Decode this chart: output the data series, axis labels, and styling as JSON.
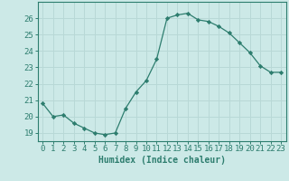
{
  "x": [
    0,
    1,
    2,
    3,
    4,
    5,
    6,
    7,
    8,
    9,
    10,
    11,
    12,
    13,
    14,
    15,
    16,
    17,
    18,
    19,
    20,
    21,
    22,
    23
  ],
  "y": [
    20.8,
    20.0,
    20.1,
    19.6,
    19.3,
    19.0,
    18.9,
    19.0,
    20.5,
    21.5,
    22.2,
    23.5,
    26.0,
    26.2,
    26.3,
    25.9,
    25.8,
    25.5,
    25.1,
    24.5,
    23.9,
    23.1,
    22.7,
    22.7
  ],
  "ylim": [
    18.5,
    27.0
  ],
  "yticks": [
    19,
    20,
    21,
    22,
    23,
    24,
    25,
    26
  ],
  "xticks": [
    0,
    1,
    2,
    3,
    4,
    5,
    6,
    7,
    8,
    9,
    10,
    11,
    12,
    13,
    14,
    15,
    16,
    17,
    18,
    19,
    20,
    21,
    22,
    23
  ],
  "xlabel": "Humidex (Indice chaleur)",
  "line_color": "#2d7d6e",
  "marker": "D",
  "bg_color": "#cce9e7",
  "grid_color": "#b8d8d6",
  "axes_color": "#2d7d6e",
  "tick_label_color": "#2d7d6e",
  "xlabel_color": "#2d7d6e",
  "xlabel_fontsize": 7.0,
  "tick_fontsize": 6.5
}
